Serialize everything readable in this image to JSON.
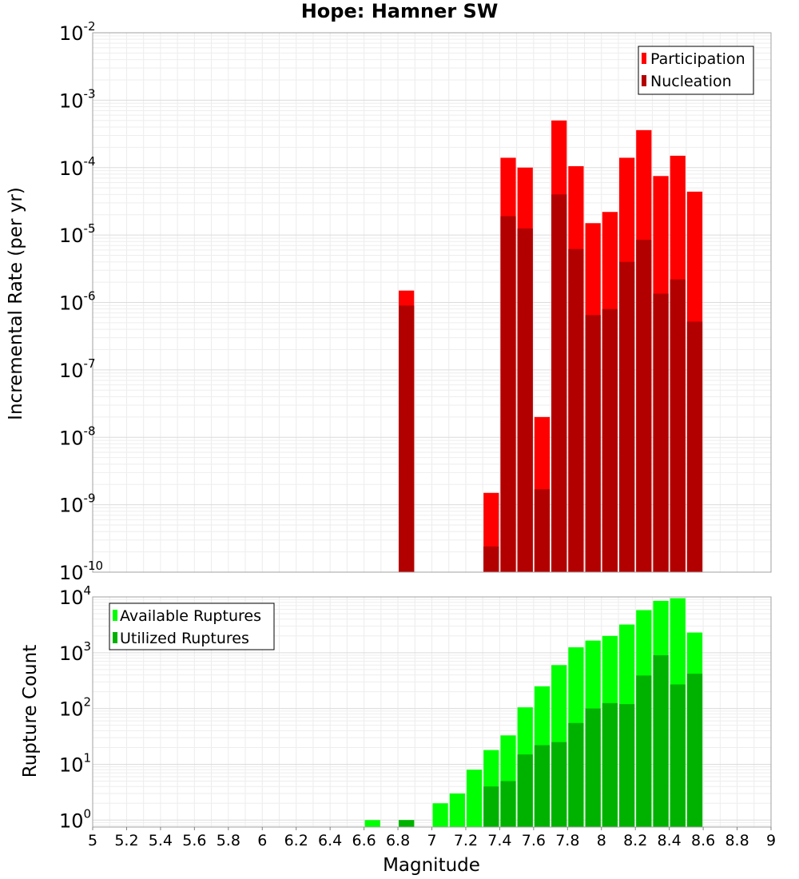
{
  "chart_data": [
    {
      "type": "bar",
      "title": "Hope: Hamner SW",
      "ylabel": "Incremental Rate (per yr)",
      "yscale": "log",
      "ylim": [
        1e-10,
        0.01
      ],
      "xlim": [
        5,
        9
      ],
      "grid": true,
      "legend_position": "top-right",
      "bar_width": 0.1,
      "series": [
        {
          "name": "Participation",
          "color": "#ff0000",
          "x": [
            6.85,
            7.35,
            7.45,
            7.55,
            7.65,
            7.75,
            7.85,
            7.95,
            8.05,
            8.15,
            8.25,
            8.35,
            8.45,
            8.55
          ],
          "values": [
            1.5e-06,
            1.5e-09,
            0.00014,
            0.0001,
            2e-08,
            0.0005,
            0.000105,
            1.5e-05,
            2.2e-05,
            0.00014,
            0.00036,
            7.5e-05,
            0.00015,
            4.4e-05
          ]
        },
        {
          "name": "Nucleation",
          "color": "#b20000",
          "x": [
            6.85,
            7.35,
            7.45,
            7.55,
            7.65,
            7.75,
            7.85,
            7.95,
            8.05,
            8.15,
            8.25,
            8.35,
            8.45,
            8.55
          ],
          "values": [
            9e-07,
            2.4e-10,
            1.9e-05,
            1.25e-05,
            1.7e-09,
            4e-05,
            6.2e-06,
            6.5e-07,
            8e-07,
            4e-06,
            8.5e-06,
            1.35e-06,
            2.2e-06,
            5.2e-07
          ]
        }
      ]
    },
    {
      "type": "bar",
      "xlabel": "Magnitude",
      "ylabel": "Rupture Count",
      "yscale": "log",
      "ylim": [
        0.75,
        10000
      ],
      "xlim": [
        5,
        9
      ],
      "grid": true,
      "legend_position": "top-left",
      "bar_width": 0.1,
      "x_ticks": [
        "5",
        "5.2",
        "5.4",
        "5.6",
        "5.8",
        "6",
        "6.2",
        "6.4",
        "6.6",
        "6.8",
        "7",
        "7.2",
        "7.4",
        "7.6",
        "7.8",
        "8",
        "8.2",
        "8.4",
        "8.6",
        "8.8",
        "9"
      ],
      "series": [
        {
          "name": "Available Ruptures",
          "color": "#00ff00",
          "x": [
            6.65,
            6.85,
            7.05,
            7.15,
            7.25,
            7.35,
            7.45,
            7.55,
            7.65,
            7.75,
            7.85,
            7.95,
            8.05,
            8.15,
            8.25,
            8.35,
            8.45,
            8.55
          ],
          "values": [
            1,
            1,
            2,
            3,
            8,
            18,
            33,
            105,
            250,
            600,
            1250,
            1650,
            2000,
            3200,
            5800,
            8500,
            9500,
            2300
          ]
        },
        {
          "name": "Utilized Ruptures",
          "color": "#00b200",
          "x": [
            6.85,
            7.35,
            7.45,
            7.55,
            7.65,
            7.75,
            7.85,
            7.95,
            8.05,
            8.15,
            8.25,
            8.35,
            8.45,
            8.55
          ],
          "values": [
            1,
            4,
            5,
            15,
            22,
            25,
            55,
            100,
            125,
            120,
            390,
            900,
            270,
            420
          ]
        }
      ]
    }
  ]
}
